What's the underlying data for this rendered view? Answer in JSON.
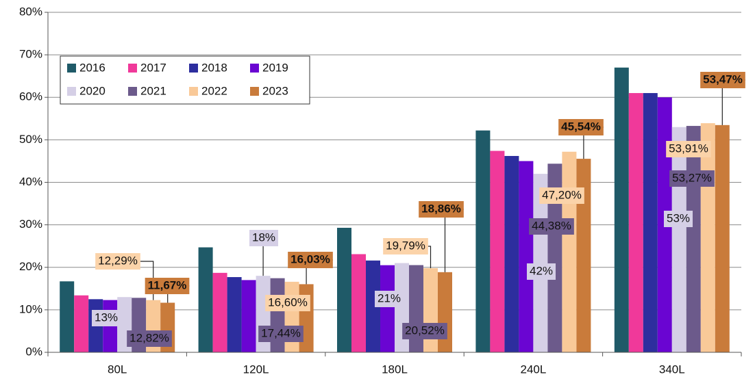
{
  "chart_data": {
    "type": "bar",
    "categories": [
      "80L",
      "120L",
      "180L",
      "240L",
      "340L"
    ],
    "series": [
      {
        "name": "2016",
        "color": "#1f5a68",
        "values": [
          16.7,
          24.7,
          29.3,
          52.2,
          67.0
        ]
      },
      {
        "name": "2017",
        "color": "#f0399a",
        "values": [
          13.4,
          18.7,
          23.1,
          47.4,
          61.0
        ]
      },
      {
        "name": "2018",
        "color": "#2d2e9e",
        "values": [
          12.5,
          17.7,
          21.6,
          46.2,
          61.0
        ]
      },
      {
        "name": "2019",
        "color": "#6a05d2",
        "values": [
          12.3,
          17.0,
          20.5,
          45.0,
          60.0
        ]
      },
      {
        "name": "2020",
        "color": "#d5cfe6",
        "values": [
          13,
          18,
          21,
          42,
          53
        ],
        "value_labels": [
          "13%",
          "18%",
          "21%",
          "42%",
          "53%"
        ]
      },
      {
        "name": "2021",
        "color": "#6c5a8b",
        "values": [
          12.82,
          17.44,
          20.52,
          44.38,
          53.27
        ],
        "value_labels": [
          "12,82%",
          "17,44%",
          "20,52%",
          "44,38%",
          "53,27%"
        ]
      },
      {
        "name": "2022",
        "color": "#f9c998",
        "values": [
          12.29,
          16.6,
          19.79,
          47.2,
          53.91
        ],
        "value_labels": [
          "12,29%",
          "16,60%",
          "19,79%",
          "47,20%",
          "53,91%"
        ]
      },
      {
        "name": "2023",
        "color": "#c97b3b",
        "values": [
          11.67,
          16.03,
          18.86,
          45.54,
          53.47
        ],
        "value_labels": [
          "11,67%",
          "16,03%",
          "18,86%",
          "45,54%",
          "53,47%"
        ]
      }
    ],
    "ylim": [
      0,
      80
    ],
    "yticks": [
      {
        "value": 0,
        "label": "0%"
      },
      {
        "value": 10,
        "label": "10%"
      },
      {
        "value": 20,
        "label": "20%"
      },
      {
        "value": 30,
        "label": "30%"
      },
      {
        "value": 40,
        "label": "40%"
      },
      {
        "value": 50,
        "label": "50%"
      },
      {
        "value": 60,
        "label": "60%"
      },
      {
        "value": 70,
        "label": "70%"
      },
      {
        "value": 80,
        "label": "80%"
      }
    ],
    "grid": true,
    "legend": "upper left"
  }
}
